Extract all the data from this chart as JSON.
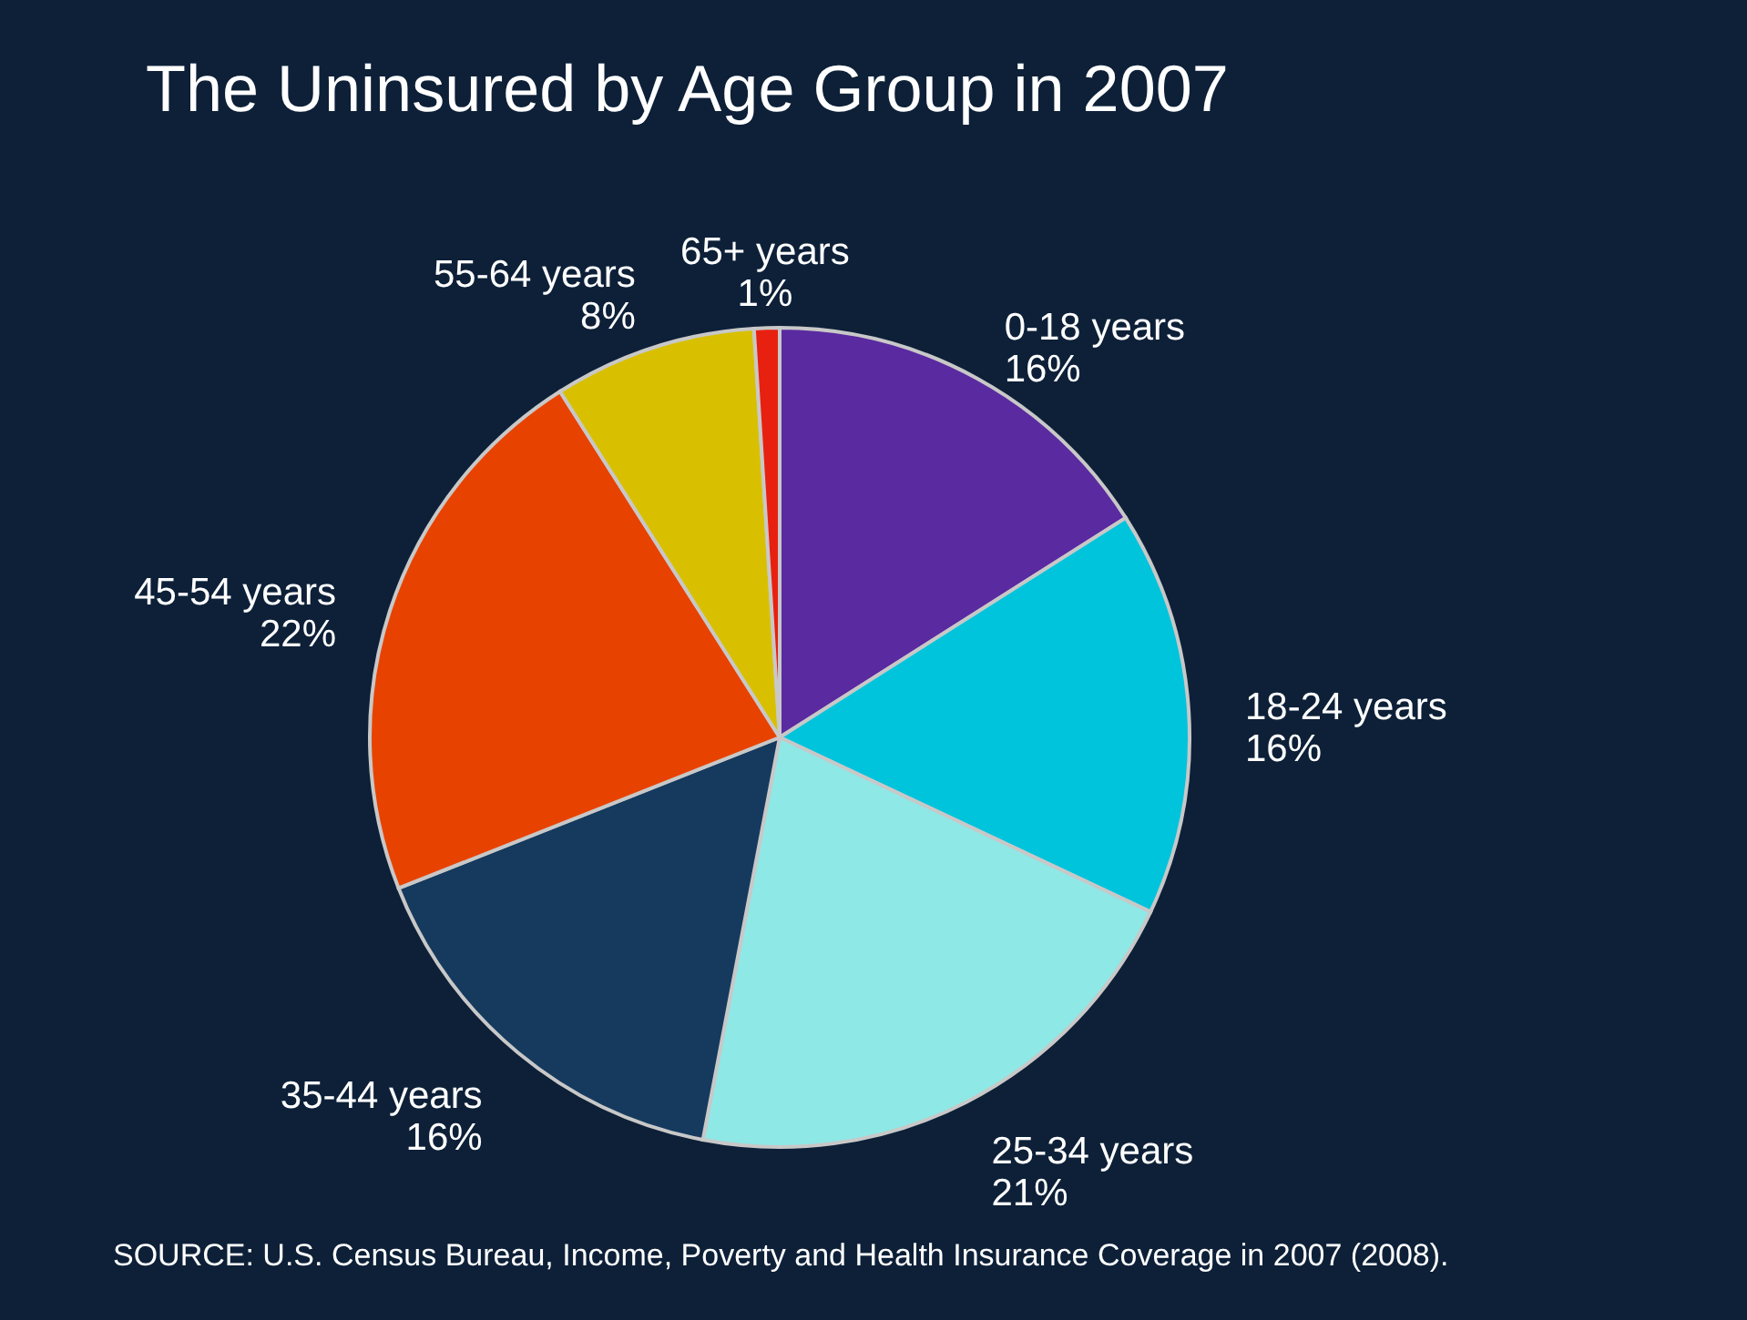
{
  "chart_data": {
    "type": "pie",
    "title": "The Uninsured by Age Group in 2007",
    "categories": [
      "0-18 years",
      "18-24 years",
      "25-34 years",
      "35-44 years",
      "45-54 years",
      "55-64 years",
      "65+ years"
    ],
    "values": [
      16,
      16,
      21,
      16,
      22,
      8,
      1
    ],
    "value_labels": [
      "16%",
      "16%",
      "21%",
      "16%",
      "22%",
      "8%",
      "1%"
    ],
    "colors": [
      "#5a2aa0",
      "#00c4dc",
      "#8ee8e6",
      "#153a5e",
      "#e84200",
      "#d8c000",
      "#e82010"
    ],
    "legend": false,
    "annotations": [
      "SOURCE: U.S. Census Bureau, Income, Poverty and Health Insurance Coverage in 2007 (2008)."
    ]
  }
}
